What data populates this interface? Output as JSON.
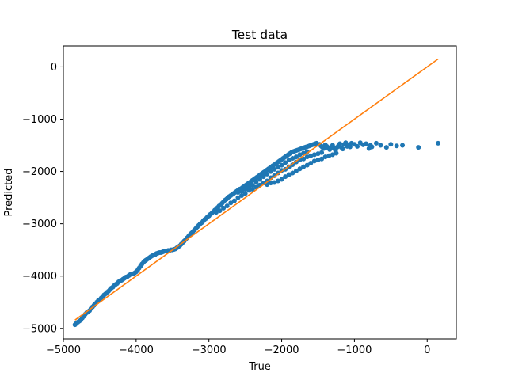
{
  "chart_data": {
    "type": "scatter",
    "title": "Test data",
    "xlabel": "True",
    "ylabel": "Predicted",
    "xlim": [
      -5000,
      400
    ],
    "ylim": [
      -5200,
      400
    ],
    "xticks": [
      -5000,
      -4000,
      -3000,
      -2000,
      -1000,
      0
    ],
    "yticks": [
      -5000,
      -4000,
      -3000,
      -2000,
      -1000,
      0
    ],
    "xtick_labels": [
      "−5000",
      "−4000",
      "−3000",
      "−2000",
      "−1000",
      "0"
    ],
    "ytick_labels": [
      "−5000",
      "−4000",
      "−3000",
      "−2000",
      "−1000",
      "0"
    ],
    "grid": false,
    "series": [
      {
        "kind": "scatter",
        "color": "#1f77b4",
        "points": [
          [
            -4840,
            -4930
          ],
          [
            -4820,
            -4900
          ],
          [
            -4800,
            -4880
          ],
          [
            -4780,
            -4860
          ],
          [
            -4760,
            -4840
          ],
          [
            -4740,
            -4800
          ],
          [
            -4720,
            -4770
          ],
          [
            -4700,
            -4730
          ],
          [
            -4680,
            -4700
          ],
          [
            -4660,
            -4680
          ],
          [
            -4640,
            -4660
          ],
          [
            -4620,
            -4620
          ],
          [
            -4600,
            -4590
          ],
          [
            -4580,
            -4560
          ],
          [
            -4560,
            -4530
          ],
          [
            -4540,
            -4500
          ],
          [
            -4520,
            -4470
          ],
          [
            -4500,
            -4450
          ],
          [
            -4480,
            -4420
          ],
          [
            -4460,
            -4390
          ],
          [
            -4440,
            -4360
          ],
          [
            -4420,
            -4340
          ],
          [
            -4400,
            -4310
          ],
          [
            -4380,
            -4290
          ],
          [
            -4360,
            -4260
          ],
          [
            -4340,
            -4230
          ],
          [
            -4320,
            -4210
          ],
          [
            -4300,
            -4180
          ],
          [
            -4280,
            -4160
          ],
          [
            -4260,
            -4140
          ],
          [
            -4240,
            -4110
          ],
          [
            -4220,
            -4090
          ],
          [
            -4200,
            -4080
          ],
          [
            -4180,
            -4060
          ],
          [
            -4160,
            -4040
          ],
          [
            -4140,
            -4020
          ],
          [
            -4120,
            -4010
          ],
          [
            -4100,
            -3990
          ],
          [
            -4080,
            -3970
          ],
          [
            -4060,
            -3960
          ],
          [
            -4040,
            -3960
          ],
          [
            -4020,
            -3940
          ],
          [
            -4000,
            -3920
          ],
          [
            -3980,
            -3890
          ],
          [
            -3960,
            -3850
          ],
          [
            -3940,
            -3810
          ],
          [
            -3920,
            -3770
          ],
          [
            -3900,
            -3740
          ],
          [
            -3880,
            -3710
          ],
          [
            -3860,
            -3690
          ],
          [
            -3840,
            -3670
          ],
          [
            -3820,
            -3650
          ],
          [
            -3800,
            -3630
          ],
          [
            -3780,
            -3610
          ],
          [
            -3760,
            -3600
          ],
          [
            -3740,
            -3590
          ],
          [
            -3720,
            -3570
          ],
          [
            -3700,
            -3560
          ],
          [
            -3680,
            -3550
          ],
          [
            -3660,
            -3550
          ],
          [
            -3640,
            -3540
          ],
          [
            -3620,
            -3530
          ],
          [
            -3600,
            -3520
          ],
          [
            -3580,
            -3520
          ],
          [
            -3560,
            -3510
          ],
          [
            -3540,
            -3510
          ],
          [
            -3520,
            -3500
          ],
          [
            -3500,
            -3500
          ],
          [
            -3480,
            -3490
          ],
          [
            -3460,
            -3480
          ],
          [
            -3440,
            -3460
          ],
          [
            -3420,
            -3440
          ],
          [
            -3400,
            -3420
          ],
          [
            -3380,
            -3390
          ],
          [
            -3360,
            -3360
          ],
          [
            -3340,
            -3330
          ],
          [
            -3320,
            -3300
          ],
          [
            -3300,
            -3270
          ],
          [
            -3280,
            -3240
          ],
          [
            -3260,
            -3210
          ],
          [
            -3240,
            -3180
          ],
          [
            -3220,
            -3150
          ],
          [
            -3200,
            -3120
          ],
          [
            -3180,
            -3090
          ],
          [
            -3160,
            -3060
          ],
          [
            -3140,
            -3030
          ],
          [
            -3120,
            -3000
          ],
          [
            -3100,
            -2980
          ],
          [
            -3080,
            -2950
          ],
          [
            -3060,
            -2920
          ],
          [
            -3040,
            -2900
          ],
          [
            -3020,
            -2870
          ],
          [
            -3000,
            -2850
          ],
          [
            -2980,
            -2820
          ],
          [
            -2960,
            -2800
          ],
          [
            -2940,
            -2770
          ],
          [
            -2920,
            -2740
          ],
          [
            -2900,
            -2720
          ],
          [
            -2880,
            -2690
          ],
          [
            -2860,
            -2660
          ],
          [
            -2840,
            -2640
          ],
          [
            -2820,
            -2610
          ],
          [
            -2800,
            -2580
          ],
          [
            -2780,
            -2550
          ],
          [
            -2760,
            -2530
          ],
          [
            -2740,
            -2500
          ],
          [
            -2720,
            -2480
          ],
          [
            -2700,
            -2460
          ],
          [
            -2680,
            -2440
          ],
          [
            -2660,
            -2420
          ],
          [
            -2640,
            -2400
          ],
          [
            -2620,
            -2380
          ],
          [
            -2600,
            -2360
          ],
          [
            -2580,
            -2340
          ],
          [
            -2560,
            -2330
          ],
          [
            -2540,
            -2310
          ],
          [
            -2520,
            -2290
          ],
          [
            -2500,
            -2270
          ],
          [
            -2480,
            -2250
          ],
          [
            -2460,
            -2230
          ],
          [
            -2440,
            -2210
          ],
          [
            -2420,
            -2190
          ],
          [
            -2400,
            -2170
          ],
          [
            -2380,
            -2150
          ],
          [
            -2360,
            -2130
          ],
          [
            -2340,
            -2110
          ],
          [
            -2320,
            -2090
          ],
          [
            -2300,
            -2070
          ],
          [
            -2280,
            -2050
          ],
          [
            -2260,
            -2030
          ],
          [
            -2240,
            -2010
          ],
          [
            -2220,
            -1990
          ],
          [
            -2200,
            -1970
          ],
          [
            -2180,
            -1950
          ],
          [
            -2160,
            -1930
          ],
          [
            -2140,
            -1910
          ],
          [
            -2120,
            -1890
          ],
          [
            -2100,
            -1870
          ],
          [
            -2080,
            -1850
          ],
          [
            -2060,
            -1830
          ],
          [
            -2040,
            -1810
          ],
          [
            -2020,
            -1790
          ],
          [
            -2000,
            -1770
          ],
          [
            -1980,
            -1750
          ],
          [
            -1960,
            -1730
          ],
          [
            -1940,
            -1710
          ],
          [
            -1920,
            -1690
          ],
          [
            -1900,
            -1670
          ],
          [
            -1880,
            -1650
          ],
          [
            -1860,
            -1630
          ],
          [
            -1840,
            -1620
          ],
          [
            -1820,
            -1610
          ],
          [
            -1800,
            -1600
          ],
          [
            -1780,
            -1590
          ],
          [
            -1760,
            -1580
          ],
          [
            -1740,
            -1570
          ],
          [
            -1720,
            -1560
          ],
          [
            -1700,
            -1550
          ],
          [
            -1680,
            -1540
          ],
          [
            -1660,
            -1530
          ],
          [
            -1640,
            -1520
          ],
          [
            -1620,
            -1510
          ],
          [
            -1600,
            -1500
          ],
          [
            -1580,
            -1490
          ],
          [
            -1560,
            -1480
          ],
          [
            -1540,
            -1470
          ],
          [
            -1520,
            -1460
          ],
          [
            -2900,
            -2780
          ],
          [
            -2850,
            -2750
          ],
          [
            -2800,
            -2700
          ],
          [
            -2750,
            -2660
          ],
          [
            -2700,
            -2600
          ],
          [
            -2650,
            -2560
          ],
          [
            -2600,
            -2500
          ],
          [
            -2550,
            -2460
          ],
          [
            -2500,
            -2420
          ],
          [
            -2450,
            -2360
          ],
          [
            -2400,
            -2340
          ],
          [
            -2350,
            -2300
          ],
          [
            -2300,
            -2260
          ],
          [
            -2250,
            -2220
          ],
          [
            -2200,
            -2180
          ],
          [
            -2150,
            -2120
          ],
          [
            -2100,
            -2080
          ],
          [
            -2050,
            -2030
          ],
          [
            -2000,
            -1980
          ],
          [
            -1950,
            -1960
          ],
          [
            -1900,
            -1910
          ],
          [
            -1850,
            -1870
          ],
          [
            -1800,
            -1820
          ],
          [
            -1750,
            -1780
          ],
          [
            -1700,
            -1760
          ],
          [
            -1650,
            -1720
          ],
          [
            -1600,
            -1700
          ],
          [
            -1550,
            -1680
          ],
          [
            -1500,
            -1660
          ],
          [
            -1450,
            -1640
          ],
          [
            -2600,
            -2400
          ],
          [
            -2550,
            -2380
          ],
          [
            -2500,
            -2340
          ],
          [
            -2450,
            -2300
          ],
          [
            -2400,
            -2260
          ],
          [
            -2350,
            -2200
          ],
          [
            -2300,
            -2150
          ],
          [
            -2250,
            -2100
          ],
          [
            -2200,
            -2050
          ],
          [
            -2150,
            -2000
          ],
          [
            -2100,
            -1960
          ],
          [
            -2050,
            -1920
          ],
          [
            -2000,
            -1880
          ],
          [
            -1950,
            -1830
          ],
          [
            -1900,
            -1780
          ],
          [
            -1850,
            -1750
          ],
          [
            -1800,
            -1720
          ],
          [
            -1750,
            -1680
          ],
          [
            -1700,
            -1650
          ],
          [
            -1650,
            -1620
          ],
          [
            -2200,
            -2250
          ],
          [
            -2150,
            -2220
          ],
          [
            -2100,
            -2210
          ],
          [
            -2050,
            -2180
          ],
          [
            -2000,
            -2150
          ],
          [
            -1950,
            -2100
          ],
          [
            -1900,
            -2060
          ],
          [
            -1850,
            -2030
          ],
          [
            -1800,
            -1990
          ],
          [
            -1750,
            -1950
          ],
          [
            -1700,
            -1910
          ],
          [
            -1650,
            -1880
          ],
          [
            -1600,
            -1840
          ],
          [
            -1550,
            -1800
          ],
          [
            -1500,
            -1780
          ],
          [
            -1450,
            -1760
          ],
          [
            -1400,
            -1720
          ],
          [
            -1350,
            -1700
          ],
          [
            -1300,
            -1680
          ],
          [
            -1250,
            -1650
          ],
          [
            -1480,
            -1480
          ],
          [
            -1460,
            -1510
          ],
          [
            -1440,
            -1540
          ],
          [
            -1420,
            -1560
          ],
          [
            -1400,
            -1490
          ],
          [
            -1380,
            -1520
          ],
          [
            -1360,
            -1550
          ],
          [
            -1340,
            -1580
          ],
          [
            -1320,
            -1530
          ],
          [
            -1300,
            -1500
          ],
          [
            -1280,
            -1560
          ],
          [
            -1260,
            -1600
          ],
          [
            -1240,
            -1540
          ],
          [
            -1220,
            -1510
          ],
          [
            -1200,
            -1470
          ],
          [
            -1180,
            -1540
          ],
          [
            -1160,
            -1570
          ],
          [
            -1140,
            -1480
          ],
          [
            -1120,
            -1450
          ],
          [
            -1100,
            -1520
          ],
          [
            -1080,
            -1500
          ],
          [
            -1060,
            -1530
          ],
          [
            -1040,
            -1460
          ],
          [
            -1000,
            -1480
          ],
          [
            -960,
            -1520
          ],
          [
            -920,
            -1450
          ],
          [
            -880,
            -1490
          ],
          [
            -840,
            -1470
          ],
          [
            -800,
            -1560
          ],
          [
            -780,
            -1500
          ],
          [
            -760,
            -1530
          ],
          [
            -700,
            -1460
          ],
          [
            -640,
            -1500
          ],
          [
            -560,
            -1540
          ],
          [
            -500,
            -1480
          ],
          [
            -420,
            -1510
          ],
          [
            -340,
            -1500
          ],
          [
            -120,
            -1540
          ],
          [
            150,
            -1460
          ]
        ]
      },
      {
        "kind": "line",
        "color": "#ff7f0e",
        "points": [
          [
            -4840,
            -4840
          ],
          [
            150,
            150
          ]
        ]
      }
    ]
  }
}
